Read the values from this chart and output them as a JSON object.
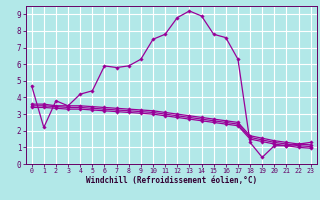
{
  "bg_color": "#b2e8e8",
  "grid_color": "#ffffff",
  "line_color": "#990099",
  "spine_color": "#660066",
  "tick_color": "#660066",
  "label_color": "#330033",
  "xlim": [
    -0.5,
    23.5
  ],
  "ylim": [
    0,
    9.5
  ],
  "xticks": [
    0,
    1,
    2,
    3,
    4,
    5,
    6,
    7,
    8,
    9,
    10,
    11,
    12,
    13,
    14,
    15,
    16,
    17,
    18,
    19,
    20,
    21,
    22,
    23
  ],
  "yticks": [
    0,
    1,
    2,
    3,
    4,
    5,
    6,
    7,
    8,
    9
  ],
  "xlabel": "Windchill (Refroidissement éolien,°C)",
  "series": {
    "main": [
      4.7,
      2.2,
      3.8,
      3.5,
      4.2,
      4.4,
      5.9,
      5.8,
      5.9,
      6.3,
      7.5,
      7.8,
      8.8,
      9.2,
      8.9,
      7.8,
      7.6,
      6.3,
      1.3,
      0.4,
      1.1,
      1.1,
      1.2,
      1.3
    ],
    "flat1": [
      3.6,
      3.6,
      3.5,
      3.5,
      3.5,
      3.45,
      3.4,
      3.35,
      3.3,
      3.25,
      3.2,
      3.1,
      3.0,
      2.9,
      2.8,
      2.7,
      2.6,
      2.5,
      1.7,
      1.55,
      1.4,
      1.3,
      1.2,
      1.15
    ],
    "flat2": [
      3.5,
      3.5,
      3.45,
      3.4,
      3.4,
      3.35,
      3.3,
      3.25,
      3.2,
      3.15,
      3.1,
      3.0,
      2.9,
      2.8,
      2.7,
      2.6,
      2.5,
      2.4,
      1.6,
      1.45,
      1.3,
      1.2,
      1.1,
      1.05
    ],
    "flat3": [
      3.4,
      3.4,
      3.35,
      3.3,
      3.3,
      3.25,
      3.2,
      3.15,
      3.1,
      3.05,
      3.0,
      2.9,
      2.8,
      2.7,
      2.6,
      2.5,
      2.4,
      2.3,
      1.5,
      1.35,
      1.2,
      1.1,
      1.0,
      0.95
    ]
  }
}
